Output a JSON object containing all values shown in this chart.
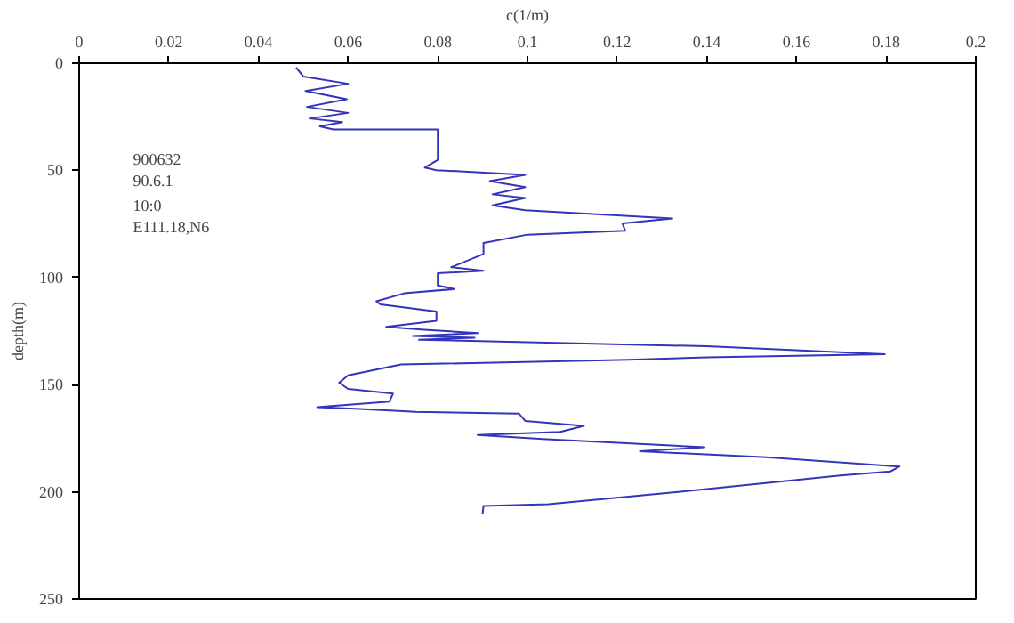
{
  "chart_data": {
    "type": "line",
    "xlabel": "c(1/m)",
    "ylabel": "depth(m)",
    "annotations": [
      "900632",
      "90.6.1",
      "10:0",
      "E111.18,N6"
    ],
    "xlim": [
      0,
      0.2
    ],
    "xticks": [
      0,
      0.02,
      0.04,
      0.06,
      0.08,
      0.1,
      0.12,
      0.14,
      0.16,
      0.18,
      0.2
    ],
    "ylim": [
      250,
      0
    ],
    "yticks": [
      0,
      50,
      100,
      150,
      200,
      250
    ],
    "grid": false,
    "series": [
      {
        "color": "#3333bb",
        "x": [
          0.0484,
          0.05,
          0.06,
          0.0505,
          0.0597,
          0.0508,
          0.06,
          0.0514,
          0.0587,
          0.0537,
          0.0567,
          0.08,
          0.08,
          0.0771,
          0.0797,
          0.0995,
          0.0916,
          0.0995,
          0.0922,
          0.0995,
          0.0922,
          0.0995,
          0.1323,
          0.1212,
          0.1218,
          0.1,
          0.0902,
          0.0902,
          0.083,
          0.0902,
          0.08,
          0.08,
          0.0837,
          0.0725,
          0.0663,
          0.0672,
          0.0797,
          0.0797,
          0.0685,
          0.077,
          0.0889,
          0.0744,
          0.0882,
          0.0758,
          0.14,
          0.1797,
          0.14,
          0.1225,
          0.0718,
          0.06,
          0.058,
          0.06,
          0.07,
          0.0692,
          0.0531,
          0.0626,
          0.0751,
          0.0981,
          0.0995,
          0.1126,
          0.1073,
          0.0889,
          0.1034,
          0.1395,
          0.1251,
          0.1533,
          0.183,
          0.181,
          0.1698,
          0.1336,
          0.1047,
          0.0902,
          0.09
        ],
        "values": [
          2,
          6.2,
          9.6,
          13,
          16.8,
          20.4,
          23.2,
          25.8,
          27.5,
          29.5,
          30.9,
          30.9,
          45.1,
          48.7,
          49.9,
          52.1,
          55,
          57.8,
          61.2,
          62.9,
          66.3,
          68.6,
          72.5,
          74.8,
          78.2,
          80,
          83.9,
          89,
          95.2,
          96.9,
          98,
          103.7,
          105.4,
          107.4,
          111.1,
          112.5,
          115.9,
          120.2,
          123,
          124.4,
          125.9,
          127.3,
          128.1,
          129,
          132.1,
          135.8,
          137.2,
          138.4,
          140.6,
          145.7,
          149.1,
          152,
          154.2,
          157.9,
          160.5,
          161.3,
          162.7,
          163.5,
          166.9,
          169.2,
          172,
          173.5,
          175.4,
          179.2,
          181.1,
          183.9,
          188.2,
          190.5,
          192.4,
          200.1,
          205.8,
          206.6,
          210.3
        ]
      }
    ]
  }
}
